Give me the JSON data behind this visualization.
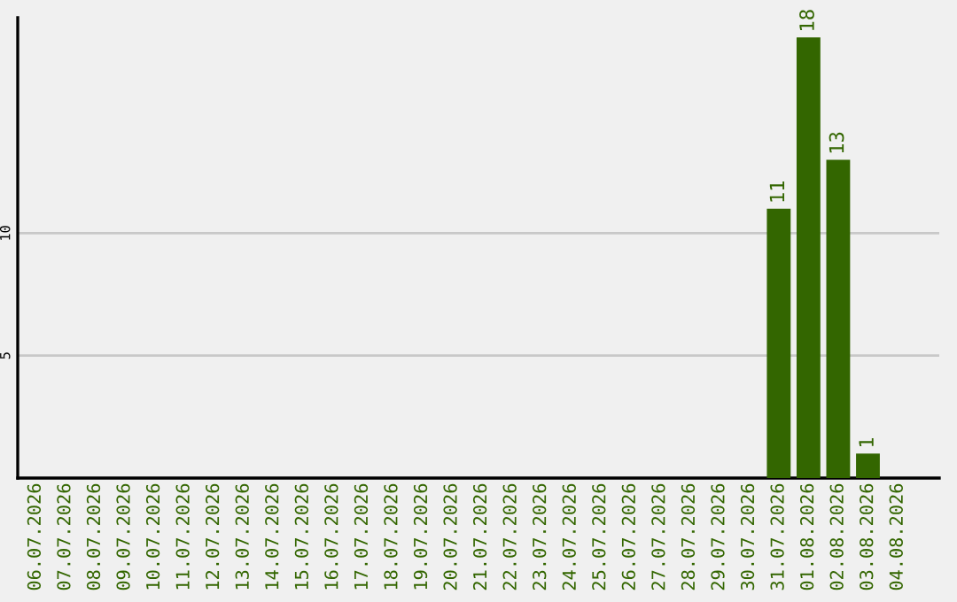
{
  "chart_data": {
    "type": "bar",
    "categories": [
      "06.07.2026",
      "07.07.2026",
      "08.07.2026",
      "09.07.2026",
      "10.07.2026",
      "11.07.2026",
      "12.07.2026",
      "13.07.2026",
      "14.07.2026",
      "15.07.2026",
      "16.07.2026",
      "17.07.2026",
      "18.07.2026",
      "19.07.2026",
      "20.07.2026",
      "21.07.2026",
      "22.07.2026",
      "23.07.2026",
      "24.07.2026",
      "25.07.2026",
      "26.07.2026",
      "27.07.2026",
      "28.07.2026",
      "29.07.2026",
      "30.07.2026",
      "31.07.2026",
      "01.08.2026",
      "02.08.2026",
      "03.08.2026",
      "04.08.2026"
    ],
    "values": [
      0,
      0,
      0,
      0,
      0,
      0,
      0,
      0,
      0,
      0,
      0,
      0,
      0,
      0,
      0,
      0,
      0,
      0,
      0,
      0,
      0,
      0,
      0,
      0,
      0,
      11,
      18,
      13,
      1,
      0
    ],
    "value_labels": [
      null,
      null,
      null,
      null,
      null,
      null,
      null,
      null,
      null,
      null,
      null,
      null,
      null,
      null,
      null,
      null,
      null,
      null,
      null,
      null,
      null,
      null,
      null,
      null,
      null,
      "11",
      "18",
      "13",
      "1",
      null
    ],
    "color": "#336600",
    "ylim": [
      0,
      18.8
    ],
    "yticks": [
      5,
      10
    ],
    "grid": "y",
    "legend": false
  }
}
